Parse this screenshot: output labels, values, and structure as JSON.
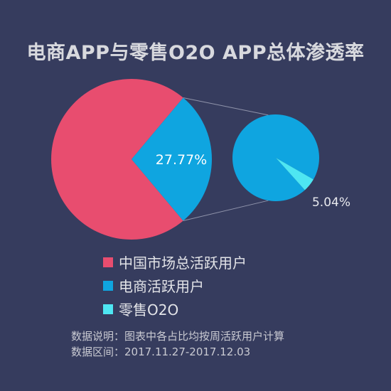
{
  "chart_data": {
    "type": "pie",
    "title": "电商APP与零售O2O APP总体渗透率",
    "main_pie": {
      "slices": [
        {
          "name": "中国市场总活跃用户",
          "value": 72.23,
          "color": "#e84d6f"
        },
        {
          "name": "电商活跃用户",
          "value": 27.77,
          "color": "#0fa5e0",
          "label": "27.77%"
        }
      ]
    },
    "sub_pie": {
      "slices": [
        {
          "name": "电商活跃用户",
          "value": 94.96,
          "color": "#0fa5e0"
        },
        {
          "name": "零售O2O",
          "value": 5.04,
          "color": "#4ee6f2",
          "label": "5.04%"
        }
      ]
    },
    "legend": [
      {
        "label": "中国市场总活跃用户",
        "color": "#e84d6f"
      },
      {
        "label": "电商活跃用户",
        "color": "#0fa5e0"
      },
      {
        "label": "零售O2O",
        "color": "#4ee6f2"
      }
    ],
    "legend_position": "bottom-left"
  },
  "notes": {
    "line1": "数据说明：图表中各占比均按周活跃用户计算",
    "line2": "数据区间：2017.11.27-2017.12.03"
  }
}
